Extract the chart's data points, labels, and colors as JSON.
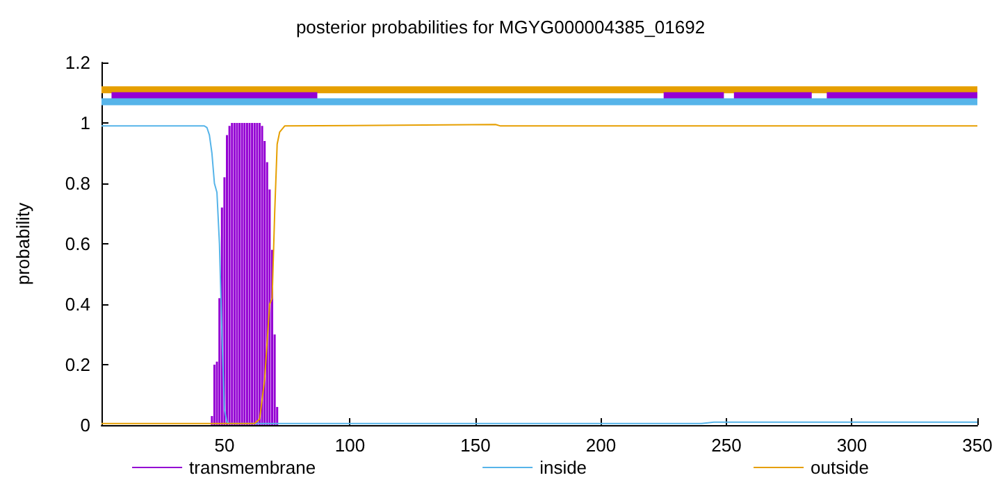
{
  "chart_data": {
    "type": "line",
    "title": "posterior probabilities for MGYG000004385_01692",
    "ylabel": "probability",
    "xlim": [
      1,
      350
    ],
    "xticks": [
      50,
      100,
      150,
      200,
      250,
      300,
      350
    ],
    "ylim": [
      0,
      1.2
    ],
    "yticks": [
      0,
      0.2,
      0.4,
      0.6,
      0.8,
      1,
      1.2
    ],
    "grid": false,
    "legend": "bottom",
    "marker": "none",
    "line_style": "solid",
    "series": [
      {
        "name": "transmembrane",
        "type": "bar",
        "color": "#9400d3",
        "x": [
          45,
          46,
          47,
          48,
          49,
          50,
          51,
          52,
          53,
          54,
          55,
          56,
          57,
          58,
          59,
          60,
          61,
          62,
          63,
          64,
          65,
          66,
          67,
          68,
          69,
          70,
          71
        ],
        "values": [
          0.03,
          0.2,
          0.21,
          0.42,
          0.72,
          0.82,
          0.96,
          0.99,
          1,
          1,
          1,
          1,
          1,
          1,
          1,
          1,
          1,
          1,
          1,
          1,
          0.99,
          0.94,
          0.87,
          0.78,
          0.58,
          0.3,
          0.06
        ]
      },
      {
        "name": "inside",
        "color": "#56b4e9",
        "x": [
          1,
          42,
          43,
          44,
          45,
          46,
          47,
          48,
          49,
          50,
          51,
          52,
          240,
          245,
          350
        ],
        "values": [
          0.99,
          0.99,
          0.985,
          0.96,
          0.9,
          0.8,
          0.77,
          0.6,
          0.3,
          0.05,
          0.01,
          0.005,
          0.005,
          0.01,
          0.01
        ]
      },
      {
        "name": "outside",
        "color": "#e69f00",
        "x": [
          1,
          62,
          64,
          66,
          68,
          69,
          70,
          71,
          72,
          74,
          158,
          160,
          350
        ],
        "values": [
          0.005,
          0.005,
          0.02,
          0.15,
          0.4,
          0.42,
          0.7,
          0.93,
          0.97,
          0.99,
          0.995,
          0.99,
          0.99
        ]
      },
      {
        "color": "#e69f00",
        "x": [
          1,
          350
        ],
        "values": [
          1.11,
          1.11
        ]
      },
      {
        "color": "#9400d3",
        "x": [
          5,
          87,
          88,
          225,
          249,
          250,
          253,
          284,
          285,
          290,
          350
        ],
        "values": [
          1.09,
          1.09,
          null,
          1.09,
          1.09,
          null,
          1.09,
          1.09,
          null,
          1.09,
          1.09
        ]
      },
      {
        "color": "#56b4e9",
        "x": [
          1,
          350
        ],
        "values": [
          1.07,
          1.07
        ]
      }
    ]
  }
}
